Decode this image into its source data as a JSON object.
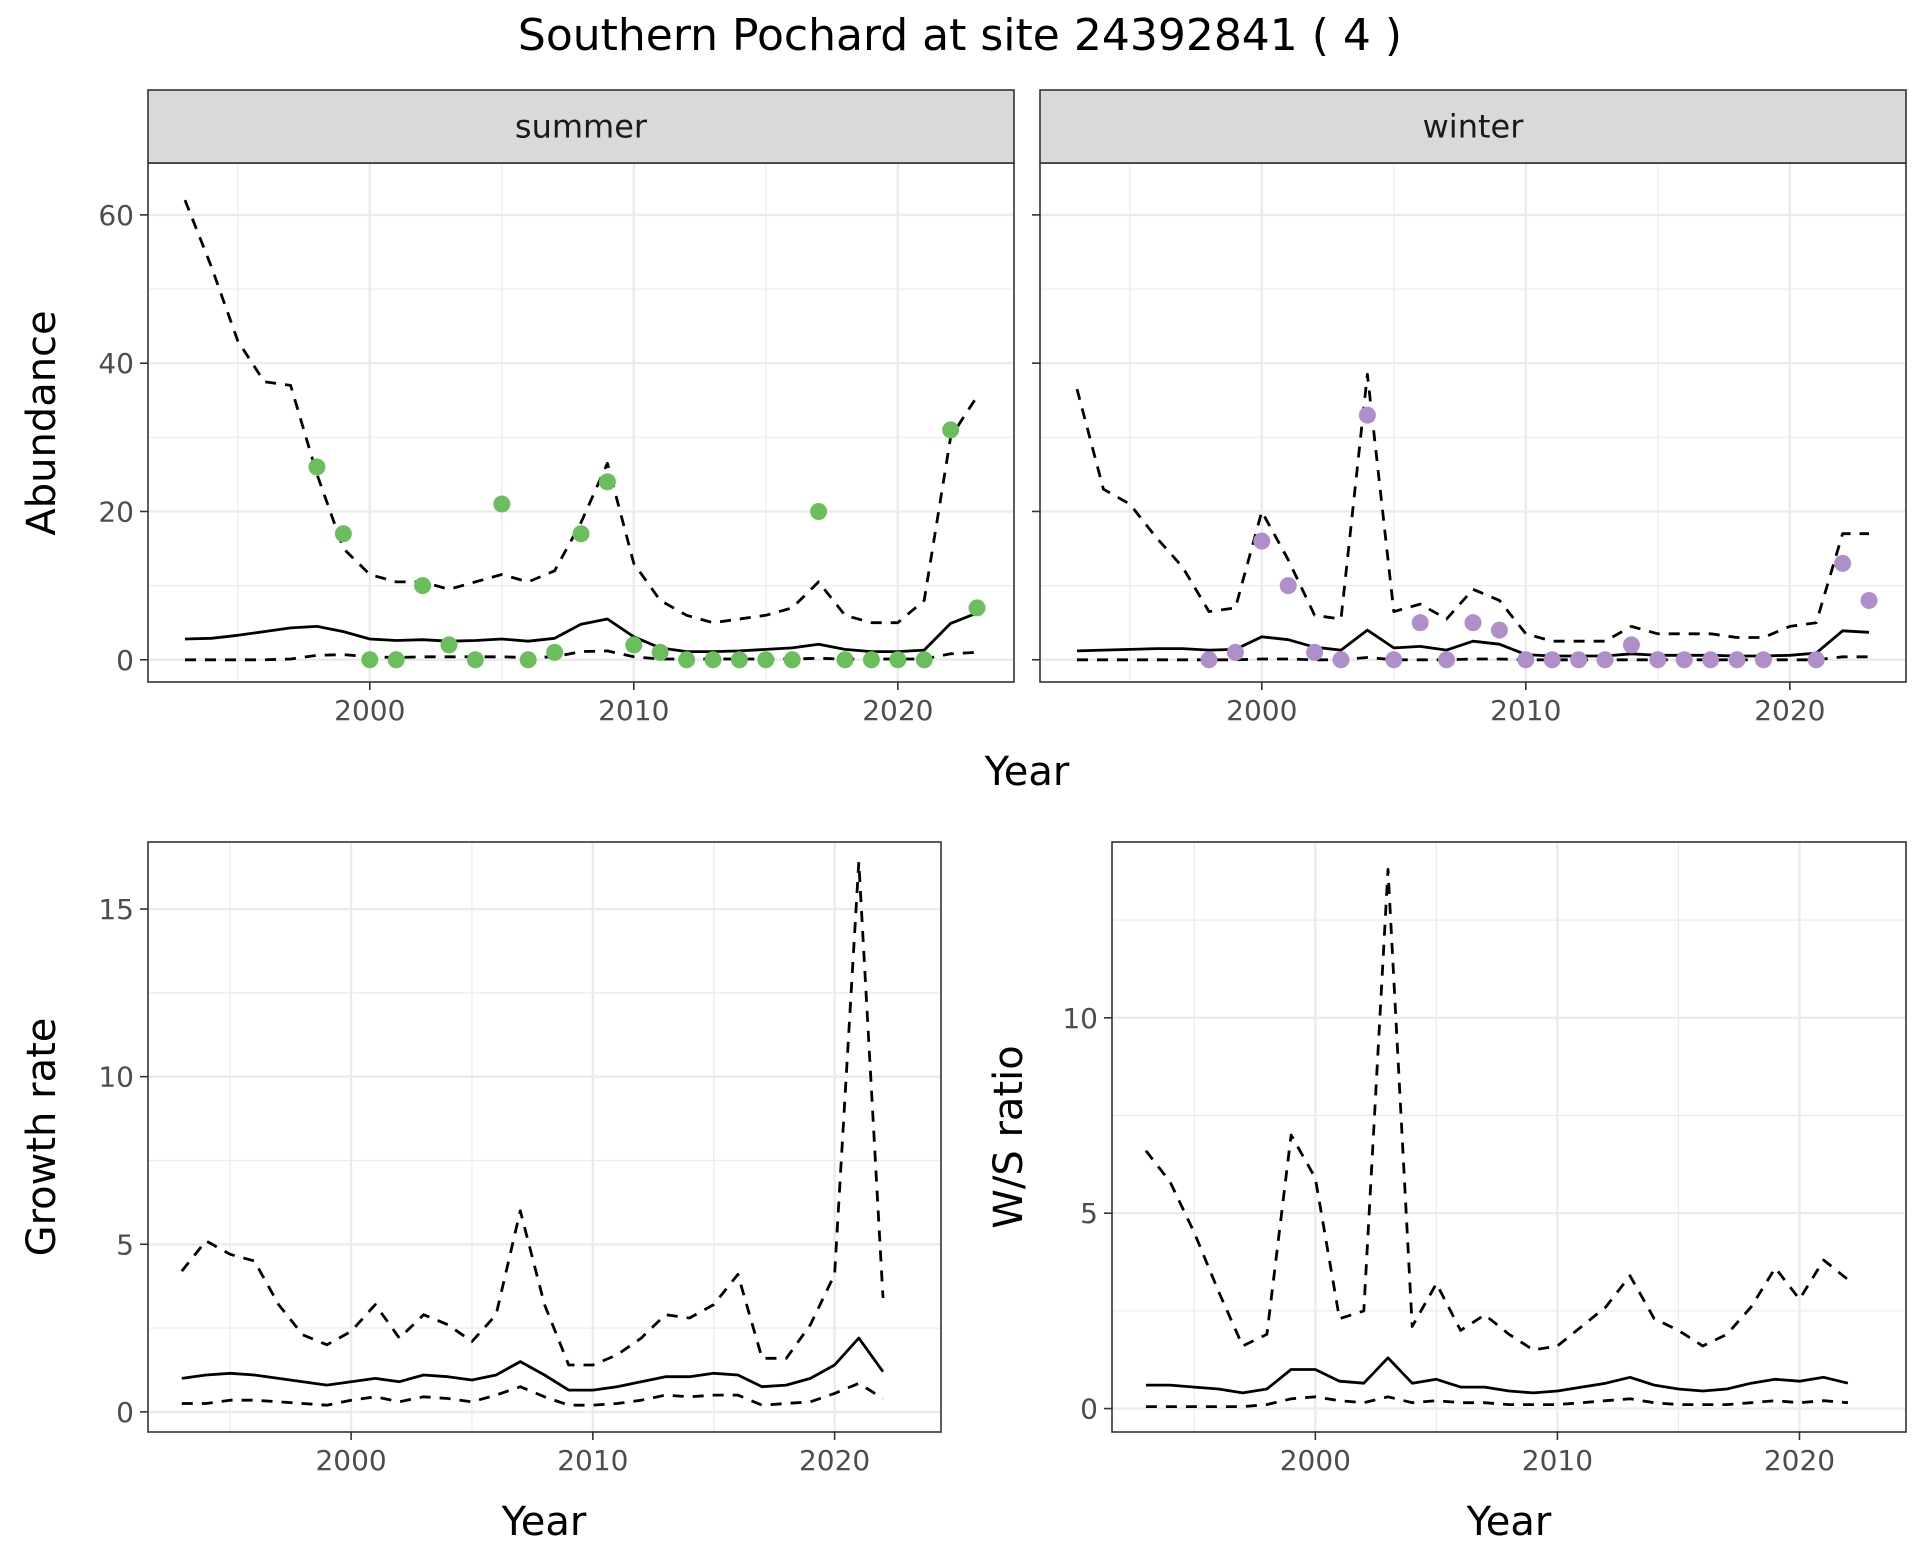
{
  "figure_title": "Southern Pochard at site 24392841 ( 4 )",
  "colors": {
    "summer_points": "#6abf5c",
    "winter_points": "#b08ec9",
    "lines": "#000000",
    "strip_bg": "#d9d9d9",
    "grid": "#ebebeb"
  },
  "chart_data": [
    {
      "id": "abundance-summer",
      "type": "line",
      "facet_label": "summer",
      "title": "Southern Pochard at site 24392841 ( 4 )",
      "xlabel": "Year",
      "ylabel": "Abundance",
      "xlim": [
        1991.6,
        2024.4
      ],
      "ylim": [
        -3,
        67
      ],
      "xticks": [
        2000,
        2010,
        2020
      ],
      "yticks": [
        0,
        20,
        40,
        60
      ],
      "show_y_tick_labels": true,
      "x": [
        1993,
        1994,
        1995,
        1996,
        1997,
        1998,
        1999,
        2000,
        2001,
        2002,
        2003,
        2004,
        2005,
        2006,
        2007,
        2008,
        2009,
        2010,
        2011,
        2012,
        2013,
        2014,
        2015,
        2016,
        2017,
        2018,
        2019,
        2020,
        2021,
        2022,
        2023
      ],
      "series": [
        {
          "name": "upper",
          "style": "dashed",
          "values": [
            62,
            53,
            43,
            37.5,
            37,
            25,
            15,
            11.5,
            10.5,
            10.5,
            9.5,
            10.5,
            11.5,
            10.5,
            12,
            18.5,
            26.5,
            13,
            8,
            6,
            5,
            5.5,
            6,
            7,
            10.5,
            6,
            5,
            5,
            8,
            30,
            35.5
          ]
        },
        {
          "name": "median",
          "style": "solid",
          "values": [
            2.8,
            2.9,
            3.3,
            3.8,
            4.3,
            4.5,
            3.8,
            2.8,
            2.6,
            2.7,
            2.5,
            2.6,
            2.8,
            2.5,
            2.9,
            4.8,
            5.5,
            3.1,
            1.6,
            1.1,
            1.1,
            1.2,
            1.4,
            1.6,
            2.1,
            1.4,
            1.1,
            1.1,
            1.3,
            4.9,
            6.3
          ]
        },
        {
          "name": "lower",
          "style": "dashed",
          "values": [
            0,
            0,
            0,
            0,
            0.1,
            0.6,
            0.7,
            0.4,
            0.3,
            0.4,
            0.4,
            0.4,
            0.4,
            0.3,
            0.4,
            1.1,
            1.2,
            0.4,
            0.1,
            0.1,
            0.1,
            0.1,
            0.1,
            0.1,
            0.2,
            0.1,
            0.1,
            0.1,
            0.1,
            0.8,
            1.0
          ]
        }
      ],
      "points": {
        "x": [
          1998,
          1999,
          2000,
          2001,
          2002,
          2003,
          2004,
          2005,
          2006,
          2007,
          2008,
          2009,
          2010,
          2011,
          2012,
          2013,
          2014,
          2015,
          2016,
          2017,
          2018,
          2019,
          2020,
          2021,
          2022,
          2023
        ],
        "y": [
          26,
          17,
          0,
          0,
          10,
          2,
          0,
          21,
          0,
          1,
          17,
          24,
          2,
          1,
          0,
          0,
          0,
          0,
          0,
          20,
          0,
          0,
          0,
          0,
          31,
          7
        ]
      }
    },
    {
      "id": "abundance-winter",
      "type": "line",
      "facet_label": "winter",
      "xlabel": "Year",
      "ylabel": "Abundance",
      "xlim": [
        1991.6,
        2024.4
      ],
      "ylim": [
        -3,
        67
      ],
      "xticks": [
        2000,
        2010,
        2020
      ],
      "yticks": [
        0,
        20,
        40,
        60
      ],
      "show_y_tick_labels": false,
      "x": [
        1993,
        1994,
        1995,
        1996,
        1997,
        1998,
        1999,
        2000,
        2001,
        2002,
        2003,
        2004,
        2005,
        2006,
        2007,
        2008,
        2009,
        2010,
        2011,
        2012,
        2013,
        2014,
        2015,
        2016,
        2017,
        2018,
        2019,
        2020,
        2021,
        2022,
        2023
      ],
      "series": [
        {
          "name": "upper",
          "style": "dashed",
          "values": [
            36.5,
            23,
            21,
            16.5,
            12.5,
            6.5,
            7,
            20,
            13.5,
            6,
            5.5,
            38.5,
            6.5,
            7.5,
            5.5,
            9.5,
            8,
            3.5,
            2.5,
            2.5,
            2.5,
            4.5,
            3.5,
            3.5,
            3.5,
            3,
            3,
            4.5,
            5,
            17,
            17
          ]
        },
        {
          "name": "median",
          "style": "solid",
          "values": [
            1.2,
            1.3,
            1.4,
            1.5,
            1.5,
            1.3,
            1.4,
            3.1,
            2.7,
            1.7,
            1.3,
            4,
            1.6,
            1.8,
            1.3,
            2.5,
            2.1,
            0.7,
            0.5,
            0.5,
            0.5,
            0.8,
            0.6,
            0.6,
            0.6,
            0.5,
            0.5,
            0.6,
            0.9,
            3.9,
            3.7
          ]
        },
        {
          "name": "lower",
          "style": "dashed",
          "values": [
            0,
            0,
            0,
            0,
            0,
            0,
            0,
            0.1,
            0.1,
            0,
            0,
            0.3,
            0,
            0,
            0,
            0.1,
            0.1,
            0,
            0,
            0,
            0,
            0,
            0,
            0,
            0,
            0,
            0,
            0,
            0,
            0.4,
            0.4
          ]
        }
      ],
      "points": {
        "x": [
          1998,
          1999,
          2000,
          2001,
          2002,
          2003,
          2004,
          2005,
          2006,
          2007,
          2008,
          2009,
          2010,
          2011,
          2012,
          2013,
          2014,
          2015,
          2016,
          2017,
          2018,
          2019,
          2021,
          2022,
          2023
        ],
        "y": [
          0,
          1,
          16,
          10,
          1,
          0,
          33,
          0,
          5,
          0,
          5,
          4,
          0,
          0,
          0,
          0,
          2,
          0,
          0,
          0,
          0,
          0,
          0,
          13,
          8
        ]
      }
    },
    {
      "id": "growth-rate",
      "type": "line",
      "xlabel": "Year",
      "ylabel": "Growth rate",
      "xlim": [
        1991.6,
        2024.4
      ],
      "ylim": [
        -0.6,
        17.0
      ],
      "xticks": [
        2000,
        2010,
        2020
      ],
      "yticks": [
        0,
        5,
        10,
        15
      ],
      "show_y_tick_labels": true,
      "x": [
        1993,
        1994,
        1995,
        1996,
        1997,
        1998,
        1999,
        2000,
        2001,
        2002,
        2003,
        2004,
        2005,
        2006,
        2007,
        2008,
        2009,
        2010,
        2011,
        2012,
        2013,
        2014,
        2015,
        2016,
        2017,
        2018,
        2019,
        2020,
        2021,
        2022
      ],
      "series": [
        {
          "name": "upper",
          "style": "dashed",
          "values": [
            4.2,
            5.1,
            4.7,
            4.5,
            3.2,
            2.3,
            2.0,
            2.4,
            3.2,
            2.2,
            2.9,
            2.6,
            2.1,
            2.9,
            6.0,
            3.2,
            1.4,
            1.4,
            1.7,
            2.2,
            2.9,
            2.8,
            3.2,
            4.1,
            1.6,
            1.6,
            2.6,
            4.1,
            16.4,
            3.4
          ]
        },
        {
          "name": "median",
          "style": "solid",
          "values": [
            1.0,
            1.1,
            1.15,
            1.1,
            1.0,
            0.9,
            0.8,
            0.9,
            1.0,
            0.9,
            1.1,
            1.05,
            0.95,
            1.1,
            1.5,
            1.1,
            0.65,
            0.65,
            0.75,
            0.9,
            1.05,
            1.05,
            1.15,
            1.1,
            0.75,
            0.8,
            1.0,
            1.4,
            2.2,
            1.2
          ]
        },
        {
          "name": "lower",
          "style": "dashed",
          "values": [
            0.25,
            0.25,
            0.35,
            0.35,
            0.3,
            0.25,
            0.2,
            0.35,
            0.45,
            0.3,
            0.45,
            0.4,
            0.3,
            0.5,
            0.75,
            0.45,
            0.2,
            0.2,
            0.25,
            0.35,
            0.5,
            0.45,
            0.5,
            0.5,
            0.2,
            0.25,
            0.3,
            0.55,
            0.85,
            0.4
          ]
        }
      ]
    },
    {
      "id": "ws-ratio",
      "type": "line",
      "xlabel": "Year",
      "ylabel": "W/S ratio",
      "xlim": [
        1991.6,
        2024.4
      ],
      "ylim": [
        -0.6,
        14.5
      ],
      "xticks": [
        2000,
        2010,
        2020
      ],
      "yticks": [
        0,
        5,
        10
      ],
      "show_y_tick_labels": true,
      "x": [
        1993,
        1994,
        1995,
        1996,
        1997,
        1998,
        1999,
        2000,
        2001,
        2002,
        2003,
        2004,
        2005,
        2006,
        2007,
        2008,
        2009,
        2010,
        2011,
        2012,
        2013,
        2014,
        2015,
        2016,
        2017,
        2018,
        2019,
        2020,
        2021,
        2022
      ],
      "series": [
        {
          "name": "upper",
          "style": "dashed",
          "values": [
            6.6,
            5.8,
            4.5,
            3.0,
            1.6,
            1.9,
            7.0,
            5.9,
            2.3,
            2.5,
            13.8,
            2.1,
            3.2,
            2.0,
            2.4,
            1.9,
            1.5,
            1.6,
            2.1,
            2.6,
            3.4,
            2.3,
            2.0,
            1.6,
            1.9,
            2.6,
            3.6,
            2.8,
            3.8,
            3.3
          ]
        },
        {
          "name": "median",
          "style": "solid",
          "values": [
            0.6,
            0.6,
            0.55,
            0.5,
            0.4,
            0.5,
            1.0,
            1.0,
            0.7,
            0.65,
            1.3,
            0.65,
            0.75,
            0.55,
            0.55,
            0.45,
            0.4,
            0.45,
            0.55,
            0.65,
            0.8,
            0.6,
            0.5,
            0.45,
            0.5,
            0.65,
            0.75,
            0.7,
            0.8,
            0.65
          ]
        },
        {
          "name": "lower",
          "style": "dashed",
          "values": [
            0.05,
            0.05,
            0.05,
            0.05,
            0.05,
            0.1,
            0.25,
            0.3,
            0.2,
            0.15,
            0.3,
            0.15,
            0.2,
            0.15,
            0.15,
            0.1,
            0.1,
            0.1,
            0.15,
            0.2,
            0.25,
            0.15,
            0.1,
            0.1,
            0.1,
            0.15,
            0.2,
            0.15,
            0.2,
            0.15
          ]
        }
      ]
    }
  ]
}
